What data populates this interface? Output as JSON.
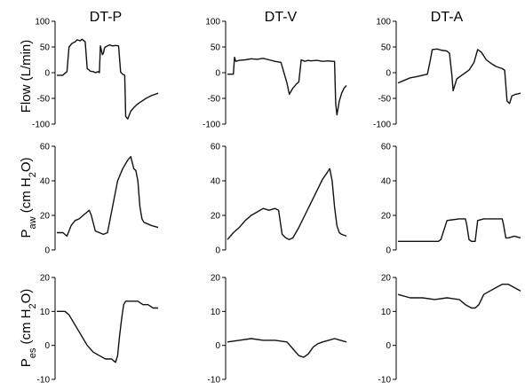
{
  "chart_data": {
    "type": "line",
    "columns": [
      "DT-P",
      "DT-V",
      "DT-A"
    ],
    "rows": [
      {
        "id": "flow",
        "ylabel": "Flow (L/min)",
        "ylim": [
          -100,
          100
        ],
        "ticks": [
          "100",
          "50",
          "0",
          "-50",
          "-100"
        ],
        "tick_values": [
          100,
          50,
          0,
          -50,
          -100
        ],
        "panels": [
          {
            "x": [
              0,
              0.06,
              0.07,
              0.1,
              0.12,
              0.15,
              0.18,
              0.2,
              0.23,
              0.25,
              0.28,
              0.3,
              0.32,
              0.33,
              0.36,
              0.38,
              0.41,
              0.42,
              0.43,
              0.45,
              0.46,
              0.47,
              0.48,
              0.5,
              0.52,
              0.55,
              0.58,
              0.61,
              0.63,
              0.65,
              0.67,
              0.68,
              0.7,
              0.73,
              0.76,
              0.79,
              0.82,
              0.85,
              0.88,
              0.91,
              0.94,
              0.97,
              1.0
            ],
            "y": [
              -5,
              -5,
              -3,
              2,
              50,
              57,
              60,
              64,
              62,
              65,
              60,
              8,
              5,
              3,
              2,
              0,
              2,
              0,
              52,
              35,
              38,
              48,
              50,
              52,
              54,
              52,
              53,
              52,
              1,
              -3,
              -5,
              -85,
              -90,
              -75,
              -68,
              -62,
              -58,
              -54,
              -50,
              -47,
              -44,
              -42,
              -40
            ]
          },
          {
            "x": [
              0,
              0.05,
              0.06,
              0.07,
              0.1,
              0.15,
              0.2,
              0.25,
              0.3,
              0.35,
              0.4,
              0.45,
              0.5,
              0.52,
              0.55,
              0.58,
              0.6,
              0.62,
              0.65,
              0.68,
              0.7,
              0.75,
              0.8,
              0.85,
              0.88,
              0.9,
              0.91,
              0.92,
              0.94,
              0.96,
              0.98,
              1.0
            ],
            "y": [
              -3,
              -3,
              30,
              22,
              24,
              25,
              27,
              26,
              28,
              25,
              22,
              20,
              -20,
              -42,
              -30,
              -22,
              -18,
              25,
              22,
              24,
              23,
              24,
              22,
              23,
              22,
              22,
              -60,
              -82,
              -55,
              -40,
              -30,
              -25
            ]
          },
          {
            "x": [
              0,
              0.05,
              0.1,
              0.15,
              0.2,
              0.24,
              0.26,
              0.28,
              0.32,
              0.35,
              0.4,
              0.42,
              0.44,
              0.45,
              0.48,
              0.52,
              0.55,
              0.58,
              0.62,
              0.65,
              0.68,
              0.72,
              0.76,
              0.8,
              0.85,
              0.87,
              0.89,
              0.91,
              0.93,
              0.96,
              1.0
            ],
            "y": [
              -20,
              -15,
              -10,
              -8,
              -5,
              -3,
              20,
              45,
              46,
              44,
              42,
              38,
              -5,
              -35,
              -12,
              -5,
              0,
              5,
              20,
              45,
              40,
              25,
              18,
              12,
              8,
              5,
              -55,
              -60,
              -45,
              -42,
              -40
            ]
          }
        ]
      },
      {
        "id": "paw",
        "ylabel": "Paw (cm H2O)",
        "ylim": [
          0,
          60
        ],
        "ticks": [
          "60",
          "40",
          "20",
          "0"
        ],
        "tick_values": [
          60,
          40,
          20,
          0
        ],
        "panels": [
          {
            "x": [
              0,
              0.06,
              0.1,
              0.14,
              0.18,
              0.22,
              0.26,
              0.3,
              0.32,
              0.34,
              0.38,
              0.42,
              0.46,
              0.5,
              0.55,
              0.6,
              0.65,
              0.7,
              0.73,
              0.76,
              0.78,
              0.8,
              0.82,
              0.84,
              0.86,
              0.9,
              0.94,
              1.0
            ],
            "y": [
              10,
              10,
              8,
              14,
              17,
              18,
              20,
              22,
              23,
              20,
              11,
              10,
              9,
              10,
              25,
              40,
              47,
              52,
              54,
              47,
              46,
              40,
              25,
              18,
              16,
              15,
              14,
              13
            ]
          },
          {
            "x": [
              0,
              0.05,
              0.1,
              0.15,
              0.2,
              0.25,
              0.3,
              0.35,
              0.4,
              0.43,
              0.46,
              0.49,
              0.52,
              0.55,
              0.6,
              0.65,
              0.7,
              0.75,
              0.8,
              0.84,
              0.86,
              0.88,
              0.9,
              0.92,
              0.94,
              0.96,
              1.0
            ],
            "y": [
              6,
              10,
              13,
              17,
              20,
              22,
              24,
              23,
              24,
              23,
              9,
              7,
              6,
              7,
              13,
              20,
              27,
              34,
              41,
              45,
              47,
              40,
              25,
              14,
              10,
              9,
              8
            ]
          },
          {
            "x": [
              0,
              0.1,
              0.2,
              0.3,
              0.33,
              0.35,
              0.4,
              0.5,
              0.55,
              0.56,
              0.58,
              0.6,
              0.63,
              0.65,
              0.7,
              0.8,
              0.85,
              0.86,
              0.88,
              0.9,
              0.95,
              1.0
            ],
            "y": [
              5,
              5,
              5,
              5,
              5,
              6,
              17,
              18,
              18,
              15,
              6,
              5,
              5,
              17,
              18,
              18,
              18,
              15,
              7,
              7,
              8,
              7
            ]
          }
        ]
      },
      {
        "id": "pes",
        "ylabel": "Pes (cm H2O)",
        "ylim": [
          -10,
          20
        ],
        "ticks": [
          "20",
          "10",
          "0",
          "-10"
        ],
        "tick_values": [
          20,
          10,
          0,
          -10
        ],
        "panels": [
          {
            "x": [
              0,
              0.05,
              0.08,
              0.12,
              0.18,
              0.24,
              0.3,
              0.36,
              0.42,
              0.48,
              0.54,
              0.58,
              0.6,
              0.62,
              0.64,
              0.66,
              0.68,
              0.72,
              0.76,
              0.8,
              0.85,
              0.9,
              0.95,
              1.0
            ],
            "y": [
              10,
              10,
              10,
              9,
              6,
              3,
              0,
              -2,
              -3,
              -4,
              -4,
              -5,
              -3,
              3,
              8,
              12,
              13,
              13,
              13,
              13,
              12,
              12,
              11,
              11
            ]
          },
          {
            "x": [
              0,
              0.1,
              0.2,
              0.3,
              0.4,
              0.5,
              0.55,
              0.6,
              0.64,
              0.68,
              0.72,
              0.76,
              0.8,
              0.85,
              0.9,
              0.95,
              1.0
            ],
            "y": [
              1,
              1.5,
              2,
              1.5,
              1.5,
              1,
              -1,
              -3,
              -3.5,
              -2.5,
              -0.5,
              0.5,
              1,
              1.5,
              2,
              1.5,
              1
            ]
          },
          {
            "x": [
              0,
              0.1,
              0.2,
              0.3,
              0.4,
              0.5,
              0.55,
              0.6,
              0.63,
              0.66,
              0.7,
              0.75,
              0.8,
              0.85,
              0.9,
              0.95,
              1.0
            ],
            "y": [
              15,
              14,
              14,
              13.5,
              14,
              13.5,
              12,
              11,
              11,
              12,
              15,
              16,
              17,
              18,
              18,
              17,
              16
            ]
          }
        ]
      }
    ]
  }
}
